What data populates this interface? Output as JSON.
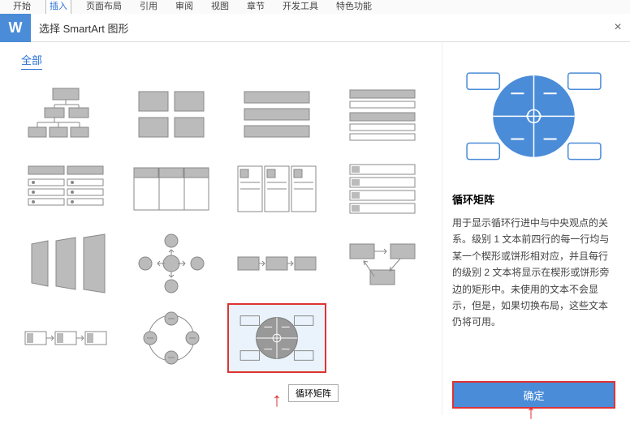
{
  "ribbon": {
    "tabs": [
      "开始",
      "插入",
      "页面布局",
      "引用",
      "审阅",
      "视图",
      "章节",
      "开发工具",
      "特色功能"
    ],
    "active_index": 1
  },
  "logo_text": "W",
  "dialog_title": "选择 SmartArt 图形",
  "close": "×",
  "category": "全部",
  "tooltip": "循环矩阵",
  "preview": {
    "title": "循环矩阵",
    "desc": "用于显示循环行进中与中央观点的关系。级别 1 文本前四行的每一行均与某一个楔形或饼形相对应，并且每行的级别 2 文本将显示在楔形或饼形旁边的矩形中。未使用的文本不会显示，但是，如果切换布局，这些文本仍将可用。",
    "colors": {
      "circle": "#4a8cd8",
      "box_border": "#4a8cd8",
      "box_fill": "#ffffff"
    }
  },
  "ok_label": "确定",
  "thumbnails": {
    "count": 16,
    "selected_index": 14
  }
}
